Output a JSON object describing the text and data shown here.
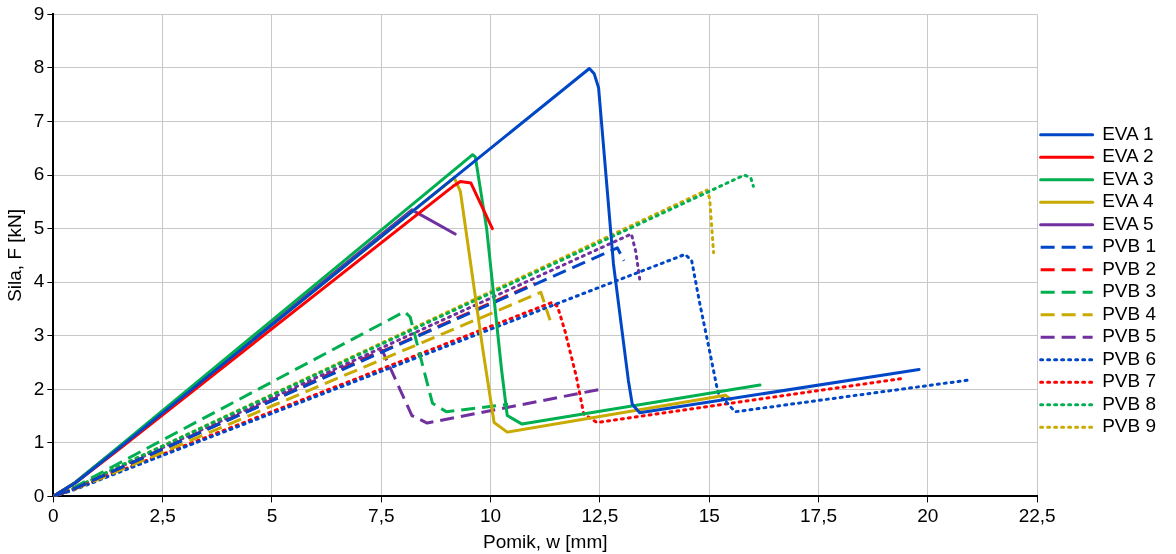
{
  "chart_data": {
    "type": "line",
    "xlabel": "Pomik, w [mm]",
    "ylabel": "Sila, F [kN]",
    "xlim": [
      0,
      22.5
    ],
    "xticks": [
      {
        "value": 0,
        "label": "0"
      },
      {
        "value": 2.5,
        "label": "2,5"
      },
      {
        "value": 5,
        "label": "5"
      },
      {
        "value": 7.5,
        "label": "7,5"
      },
      {
        "value": 10,
        "label": "10"
      },
      {
        "value": 12.5,
        "label": "12,5"
      },
      {
        "value": 15,
        "label": "15"
      },
      {
        "value": 17.5,
        "label": "17,5"
      },
      {
        "value": 20,
        "label": "20"
      },
      {
        "value": 22.5,
        "label": "22,5"
      }
    ],
    "ylim": [
      0,
      9
    ],
    "yticks": [
      0,
      1,
      2,
      3,
      4,
      5,
      6,
      7,
      8,
      9
    ],
    "grid": true,
    "legend": "right",
    "marker": "none",
    "series": [
      {
        "name": "EVA 1",
        "color": "#0047c8",
        "line_style": "solid",
        "x": [
          0,
          0.5,
          1.5,
          12.26,
          12.37,
          12.47,
          12.81,
          13.15,
          13.24,
          13.41,
          19.8
        ],
        "values": [
          0,
          0.25,
          0.9,
          7.99,
          7.89,
          7.63,
          4.34,
          2.17,
          1.72,
          1.56,
          2.37
        ]
      },
      {
        "name": "EVA 2",
        "color": "#ff0000",
        "line_style": "solid",
        "x": [
          0,
          0.5,
          1.5,
          9.14,
          9.31,
          9.55,
          10.04
        ],
        "values": [
          0,
          0.25,
          0.88,
          5.79,
          5.88,
          5.85,
          5.0
        ]
      },
      {
        "name": "EVA 3",
        "color": "#00b050",
        "line_style": "solid",
        "x": [
          0,
          0.5,
          1.5,
          9.59,
          9.65,
          9.91,
          10.25,
          10.38,
          10.72,
          16.16
        ],
        "values": [
          0,
          0.26,
          0.93,
          6.38,
          6.34,
          5.0,
          2.37,
          1.51,
          1.35,
          2.08
        ]
      },
      {
        "name": "EVA 4",
        "color": "#c9aa00",
        "line_style": "solid",
        "x": [
          1.5,
          9.17,
          9.31,
          9.83,
          10.08,
          10.38,
          15.37,
          15.5
        ],
        "values": [
          0.9,
          5.95,
          5.69,
          2.7,
          1.38,
          1.2,
          1.89,
          1.81
        ]
      },
      {
        "name": "EVA 5",
        "color": "#7030a0",
        "line_style": "solid",
        "x": [
          0,
          0.5,
          1.5,
          8.2,
          9.19
        ],
        "values": [
          0,
          0.26,
          0.92,
          5.35,
          4.9
        ]
      },
      {
        "name": "PVB 1",
        "color": "#0047c8",
        "line_style": "dashed",
        "x": [
          0,
          0.5,
          1.5,
          12.9,
          13.05
        ],
        "values": [
          0,
          0.15,
          0.52,
          4.64,
          4.4
        ]
      },
      {
        "name": "PVB 2",
        "color": "#ff0000",
        "line_style": "dashed",
        "x": [
          0,
          0.5,
          1.5,
          11.02
        ],
        "values": [
          0,
          0.15,
          0.52,
          3.98
        ]
      },
      {
        "name": "PVB 3",
        "color": "#00b050",
        "line_style": "dashed",
        "x": [
          0,
          0.5,
          1.5,
          8.03,
          8.16,
          8.67,
          8.99,
          10.4
        ],
        "values": [
          0,
          0.18,
          0.62,
          3.45,
          3.35,
          1.74,
          1.58,
          1.72
        ]
      },
      {
        "name": "PVB 4",
        "color": "#c9aa00",
        "line_style": "dashed",
        "x": [
          0,
          0.5,
          1.5,
          11.15,
          11.36
        ],
        "values": [
          0,
          0.14,
          0.48,
          3.81,
          3.29
        ]
      },
      {
        "name": "PVB 5",
        "color": "#7030a0",
        "line_style": "dashed",
        "x": [
          0,
          0.5,
          1.5,
          7.52,
          8.2,
          8.55,
          12.51
        ],
        "values": [
          0,
          0.15,
          0.52,
          2.73,
          1.51,
          1.37,
          2.0
        ]
      },
      {
        "name": "PVB 6",
        "color": "#0047c8",
        "line_style": "dotted",
        "x": [
          0,
          0.5,
          1.5,
          14.45,
          14.6,
          14.78,
          15.03,
          15.2,
          15.59,
          21.0
        ],
        "values": [
          0,
          0.13,
          0.45,
          4.52,
          4.4,
          3.62,
          2.63,
          1.94,
          1.58,
          2.18
        ]
      },
      {
        "name": "PVB 7",
        "color": "#ff0000",
        "line_style": "dotted",
        "x": [
          0,
          0.5,
          1.5,
          11.4,
          11.53,
          11.7,
          11.96,
          12.13,
          12.43,
          19.4
        ],
        "values": [
          0,
          0.14,
          0.47,
          3.62,
          3.55,
          3.09,
          2.24,
          1.54,
          1.38,
          2.2
        ]
      },
      {
        "name": "PVB 8",
        "color": "#00b050",
        "line_style": "dotted",
        "x": [
          0,
          0.5,
          1.5,
          15.8,
          15.95,
          16.01
        ],
        "values": [
          0,
          0.16,
          0.56,
          6.0,
          5.95,
          5.79
        ]
      },
      {
        "name": "PVB 9",
        "color": "#c9aa00",
        "line_style": "dotted",
        "x": [
          0,
          0.5,
          1.5,
          14.95,
          15.01,
          15.1
        ],
        "values": [
          0,
          0.16,
          0.56,
          5.72,
          5.56,
          4.55
        ]
      },
      {
        "color": "#7030a0",
        "line_style": "dotted",
        "x": [
          0,
          0.5,
          1.5,
          13.22,
          13.32,
          13.41
        ],
        "values": [
          0,
          0.15,
          0.54,
          4.9,
          4.57,
          4.06
        ]
      }
    ]
  }
}
